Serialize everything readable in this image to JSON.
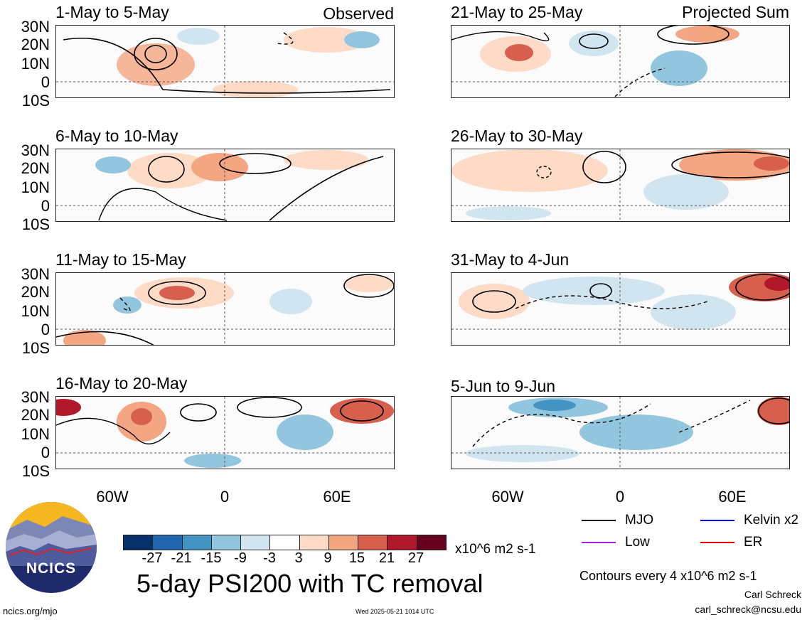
{
  "left_column": {
    "panels": [
      {
        "title": "1-May to 5-May",
        "tag": "Observed"
      },
      {
        "title": "6-May to 10-May",
        "tag": ""
      },
      {
        "title": "11-May to 15-May",
        "tag": ""
      },
      {
        "title": "16-May to 20-May",
        "tag": ""
      }
    ]
  },
  "right_column": {
    "panels": [
      {
        "title": "21-May to 25-May",
        "tag": "Projected Sum"
      },
      {
        "title": "26-May to 30-May",
        "tag": ""
      },
      {
        "title": "31-May to 4-Jun",
        "tag": ""
      },
      {
        "title": "5-Jun to 9-Jun",
        "tag": ""
      }
    ]
  },
  "y_labels": [
    "30N",
    "20N",
    "10N",
    "0",
    "10S"
  ],
  "x_labels": [
    "60W",
    "0",
    "60E"
  ],
  "colorbar": {
    "labels": [
      "-27",
      "-21",
      "-15",
      "-9",
      "-3",
      "3",
      "9",
      "15",
      "21",
      "27"
    ],
    "colors": [
      "#08306b",
      "#2166ac",
      "#4393c3",
      "#92c5de",
      "#d1e5f0",
      "#ffffff",
      "#fddbc7",
      "#f4a582",
      "#d6604d",
      "#b2182b",
      "#67001f"
    ],
    "units": "x10^6 m2 s-1"
  },
  "title": "5-day PSI200 with TC removal",
  "legend": {
    "items": [
      {
        "label": "MJO",
        "color": "#000000"
      },
      {
        "label": "Kelvin x2",
        "color": "#0000ff"
      },
      {
        "label": "Low",
        "color": "#a020f0"
      },
      {
        "label": "ER",
        "color": "#e00000"
      }
    ],
    "contours_note": "Contours every 4 x10^6 m2 s-1"
  },
  "credits": {
    "author": "Carl Schreck",
    "email": "carl_schreck@ncsu.edu",
    "site": "ncics.org/mjo",
    "timestamp": "Wed 2025-05-21 1014 UTC",
    "logo_text": "NCICS"
  }
}
